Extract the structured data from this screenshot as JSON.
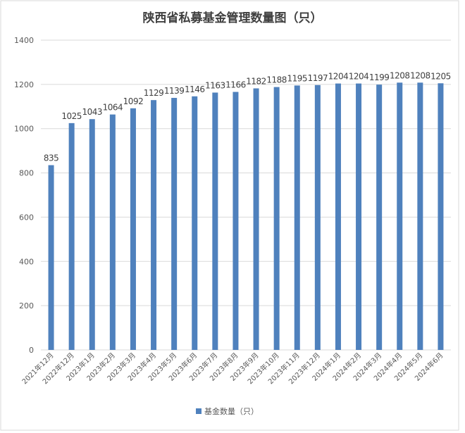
{
  "chart_data": {
    "type": "bar",
    "title": "陕西省私募基金管理数量图（只）",
    "xlabel": "",
    "ylabel": "",
    "ylim": [
      0,
      1400
    ],
    "yticks": [
      0,
      200,
      400,
      600,
      800,
      1000,
      1200,
      1400
    ],
    "grid": true,
    "legend": "bottom",
    "categories": [
      "2021年12月",
      "2022年12月",
      "2023年1月",
      "2023年2月",
      "2023年3月",
      "2023年4月",
      "2023年5月",
      "2023年6月",
      "2023年7月",
      "2023年8月",
      "2023年9月",
      "2023年10月",
      "2023年11月",
      "2023年12月",
      "2024年1月",
      "2024年2月",
      "2024年3月",
      "2024年4月",
      "2024年5月",
      "2024年6月"
    ],
    "series": [
      {
        "name": "基金数量（只）",
        "color": "#4f81bd",
        "values": [
          835,
          1025,
          1043,
          1064,
          1092,
          1129,
          1139,
          1146,
          1163,
          1166,
          1182,
          1188,
          1195,
          1197,
          1204,
          1204,
          1199,
          1208,
          1208,
          1205
        ]
      }
    ]
  }
}
